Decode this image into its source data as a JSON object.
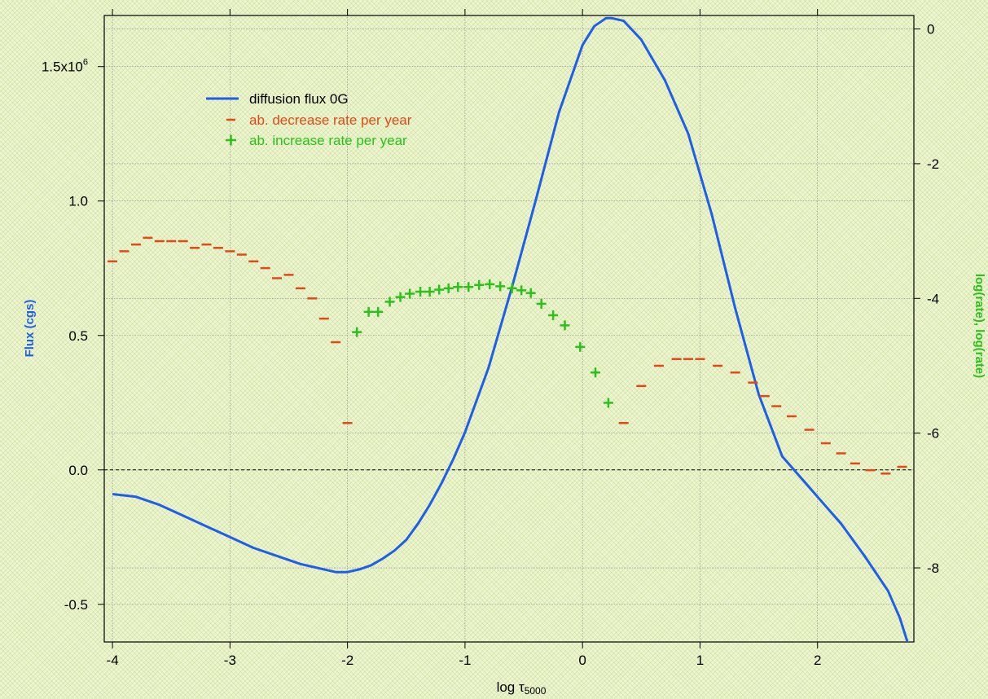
{
  "chart_data": {
    "type": "line",
    "xlabel_main": "log τ",
    "xlabel_sub": "5000",
    "ylabel_left": "Flux (cgs)",
    "ylabel_right": "log(rate), log(rate)",
    "xlim": [
      -4.07,
      2.82
    ],
    "ylim_left": [
      -0.64,
      1.69
    ],
    "ylim_right": [
      -9.1,
      0.2
    ],
    "x_ticks": [
      "-4",
      "-3",
      "-2",
      "-1",
      "0",
      "1",
      "2"
    ],
    "x_tick_values": [
      -4,
      -3,
      -2,
      -1,
      0,
      1,
      2
    ],
    "y_left_ticks": [
      "-0.5",
      "0.0",
      "0.5",
      "1.0"
    ],
    "y_left_tick_values": [
      -0.5,
      0.0,
      0.5,
      1.0
    ],
    "y_left_top_tick": {
      "value": 1.5,
      "mantissa": "1.5x10",
      "exponent": "6"
    },
    "y_right_ticks": [
      "-8",
      "-6",
      "-4",
      "-2",
      "0"
    ],
    "y_right_tick_values": [
      -8,
      -6,
      -4,
      -2,
      0
    ],
    "zero_line": 0,
    "grid": true,
    "legend_position": "top-left",
    "colors": {
      "flux": "#1f5fe8",
      "decrease": "#e04a18",
      "increase": "#2cc01c",
      "axis": "#000000",
      "grid": "#8a8a8a"
    },
    "series": [
      {
        "name": "diffusion flux 0G",
        "axis": "left",
        "style": "line",
        "x": [
          -4.0,
          -3.8,
          -3.6,
          -3.4,
          -3.2,
          -3.0,
          -2.8,
          -2.6,
          -2.4,
          -2.2,
          -2.1,
          -2.0,
          -1.9,
          -1.8,
          -1.7,
          -1.6,
          -1.5,
          -1.4,
          -1.3,
          -1.2,
          -1.1,
          -1.0,
          -0.8,
          -0.6,
          -0.4,
          -0.2,
          0.0,
          0.1,
          0.2,
          0.25,
          0.35,
          0.5,
          0.7,
          0.9,
          1.1,
          1.3,
          1.5,
          1.7,
          1.9,
          2.0,
          2.2,
          2.4,
          2.6,
          2.7,
          2.78
        ],
        "y": [
          -0.09,
          -0.1,
          -0.13,
          -0.17,
          -0.21,
          -0.25,
          -0.29,
          -0.32,
          -0.35,
          -0.37,
          -0.38,
          -0.38,
          -0.37,
          -0.355,
          -0.33,
          -0.3,
          -0.26,
          -0.2,
          -0.13,
          -0.05,
          0.04,
          0.14,
          0.38,
          0.68,
          1.0,
          1.33,
          1.58,
          1.65,
          1.68,
          1.68,
          1.67,
          1.6,
          1.45,
          1.25,
          0.95,
          0.6,
          0.28,
          0.05,
          -0.05,
          -0.1,
          -0.2,
          -0.32,
          -0.45,
          -0.55,
          -0.66
        ]
      },
      {
        "name": "ab. decrease rate per year",
        "axis": "right",
        "style": "dash-marker",
        "x": [
          -4.0,
          -3.9,
          -3.8,
          -3.7,
          -3.6,
          -3.5,
          -3.4,
          -3.3,
          -3.2,
          -3.1,
          -3.0,
          -2.9,
          -2.8,
          -2.7,
          -2.6,
          -2.5,
          -2.4,
          -2.3,
          -2.2,
          -2.1,
          -2.0,
          0.35,
          0.5,
          0.65,
          0.8,
          0.9,
          1.0,
          1.15,
          1.3,
          1.45,
          1.55,
          1.65,
          1.78,
          1.93,
          2.07,
          2.2,
          2.32,
          2.45,
          2.58,
          2.72
        ],
        "y": [
          -3.45,
          -3.3,
          -3.2,
          -3.1,
          -3.15,
          -3.15,
          -3.15,
          -3.25,
          -3.2,
          -3.25,
          -3.3,
          -3.35,
          -3.45,
          -3.55,
          -3.7,
          -3.65,
          -3.85,
          -4.0,
          -4.3,
          -4.65,
          -5.85,
          -5.85,
          -5.3,
          -5.0,
          -4.9,
          -4.9,
          -4.9,
          -5.0,
          -5.1,
          -5.25,
          -5.45,
          -5.6,
          -5.75,
          -5.95,
          -6.15,
          -6.3,
          -6.45,
          -6.55,
          -6.6,
          -6.5
        ]
      },
      {
        "name": "ab. increase rate per year",
        "axis": "right",
        "style": "plus-marker",
        "x": [
          -1.92,
          -1.82,
          -1.74,
          -1.64,
          -1.55,
          -1.47,
          -1.38,
          -1.3,
          -1.22,
          -1.14,
          -1.06,
          -0.97,
          -0.88,
          -0.79,
          -0.7,
          -0.6,
          -0.52,
          -0.44,
          -0.35,
          -0.25,
          -0.15,
          -0.02,
          0.11,
          0.22
        ],
        "y": [
          -4.5,
          -4.2,
          -4.2,
          -4.05,
          -3.98,
          -3.93,
          -3.9,
          -3.9,
          -3.87,
          -3.85,
          -3.83,
          -3.83,
          -3.8,
          -3.79,
          -3.82,
          -3.85,
          -3.88,
          -3.92,
          -4.08,
          -4.25,
          -4.4,
          -4.72,
          -5.1,
          -5.55
        ]
      }
    ]
  }
}
